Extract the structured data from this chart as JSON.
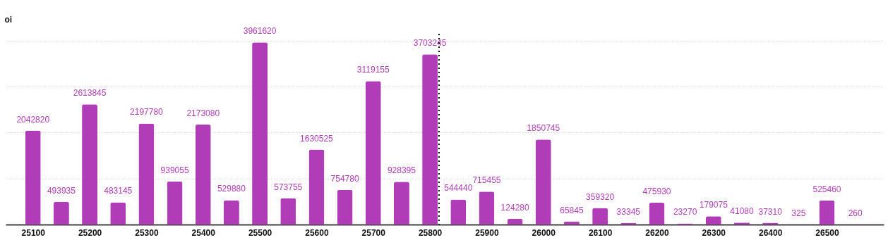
{
  "chart_data": {
    "type": "bar",
    "ylabel": "oi",
    "x": [
      25100,
      25150,
      25200,
      25250,
      25300,
      25350,
      25400,
      25450,
      25500,
      25550,
      25600,
      25650,
      25700,
      25750,
      25800,
      25850,
      25900,
      25950,
      26000,
      26050,
      26100,
      26150,
      26200,
      26250,
      26300,
      26350,
      26400,
      26450,
      26500,
      26550
    ],
    "values": [
      2042820,
      493935,
      2613845,
      483145,
      2197780,
      939055,
      2173080,
      529880,
      3961620,
      573755,
      1630525,
      754780,
      3119155,
      928395,
      3703245,
      544440,
      715455,
      124280,
      1850745,
      65845,
      359320,
      33345,
      475930,
      23270,
      179075,
      41080,
      37310,
      325,
      525460,
      260
    ],
    "color": "#b03cb8",
    "xlim": [
      25058,
      26594
    ],
    "xticks": [
      25100,
      25200,
      25300,
      25400,
      25500,
      25600,
      25700,
      25800,
      25900,
      26000,
      26100,
      26200,
      26300,
      26400,
      26500
    ],
    "ylim": [
      0,
      4150000
    ],
    "yticks": [
      {
        "value": 1000000,
        "label": null
      },
      {
        "value": 2000000,
        "label": null
      },
      {
        "value": 3000000,
        "label": null
      },
      {
        "value": 4000000,
        "label": null
      }
    ],
    "grid": "y",
    "tick_labels": "x",
    "data_labels": true,
    "ref_lines": [
      {
        "axis": "x",
        "value": 25816,
        "color": "#000000",
        "line_style": "dotted"
      }
    ]
  }
}
